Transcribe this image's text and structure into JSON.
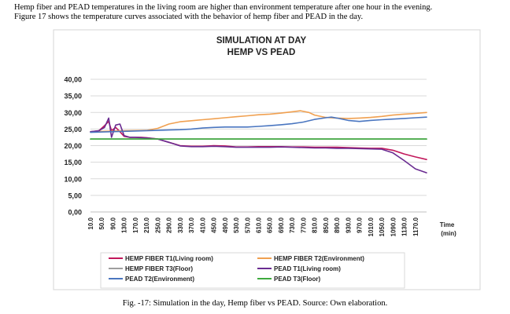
{
  "intro_text": [
    "Hemp fiber and PEAD temperatures in the living room are higher than environment temperature after one hour in the evening.",
    "Figure 17 shows the temperature curves associated with the behavior of hemp fiber and PEAD in the day."
  ],
  "caption": "Fig. -17: Simulation in the day, Hemp fiber vs PEAD. Source: Own elaboration.",
  "chart_data": {
    "type": "line",
    "title": "SIMULATION AT DAY",
    "subtitle": "HEMP VS PEAD",
    "xlabel": "Time (min)",
    "xlabel_lines": [
      "Time",
      "(min)"
    ],
    "ylabel": "",
    "ylim": [
      0,
      40
    ],
    "ytick_labels": [
      "0,00",
      "5,00",
      "10,00",
      "15,00",
      "20,00",
      "25,00",
      "30,00",
      "35,00",
      "40,00"
    ],
    "ytick_values": [
      0,
      5,
      10,
      15,
      20,
      25,
      30,
      35,
      40
    ],
    "xlim": [
      10,
      1210
    ],
    "xtick_values": [
      10,
      50,
      90,
      130,
      170,
      210,
      250,
      290,
      330,
      370,
      410,
      450,
      490,
      530,
      570,
      610,
      650,
      690,
      730,
      770,
      810,
      850,
      890,
      930,
      970,
      1010,
      1050,
      1090,
      1130,
      1170
    ],
    "xtick_labels": [
      "10.0",
      "50.0",
      "90.0",
      "130.0",
      "170.0",
      "210.0",
      "250.0",
      "290.0",
      "330.0",
      "370.0",
      "410.0",
      "450.0",
      "490.0",
      "530.0",
      "570.0",
      "610.0",
      "650.0",
      "690.0",
      "730.0",
      "770.0",
      "810.0",
      "850.0",
      "890.0",
      "930.0",
      "970.0",
      "1010.0",
      "1050.0",
      "1090.0",
      "1130.0",
      "1170.0"
    ],
    "grid": "horizontal",
    "legend_position": "bottom",
    "series": [
      {
        "name": "HEMP FIBER T1(Living room)",
        "color": "#c2185b",
        "points": [
          [
            10,
            24.2
          ],
          [
            40,
            24.5
          ],
          [
            60,
            26
          ],
          [
            75,
            27.3
          ],
          [
            85,
            24.5
          ],
          [
            100,
            25.5
          ],
          [
            115,
            24.2
          ],
          [
            130,
            22.8
          ],
          [
            150,
            22.5
          ],
          [
            170,
            22.5
          ],
          [
            190,
            22.5
          ],
          [
            210,
            22.4
          ],
          [
            250,
            22
          ],
          [
            290,
            21
          ],
          [
            330,
            20
          ],
          [
            370,
            19.8
          ],
          [
            410,
            19.8
          ],
          [
            450,
            20
          ],
          [
            490,
            19.9
          ],
          [
            530,
            19.6
          ],
          [
            570,
            19.6
          ],
          [
            610,
            19.7
          ],
          [
            650,
            19.7
          ],
          [
            690,
            19.7
          ],
          [
            730,
            19.6
          ],
          [
            770,
            19.6
          ],
          [
            810,
            19.5
          ],
          [
            850,
            19.5
          ],
          [
            890,
            19.5
          ],
          [
            930,
            19.4
          ],
          [
            970,
            19.3
          ],
          [
            1010,
            19.2
          ],
          [
            1050,
            19.2
          ],
          [
            1090,
            18.6
          ],
          [
            1130,
            17.5
          ],
          [
            1170,
            16.6
          ],
          [
            1210,
            15.8
          ]
        ]
      },
      {
        "name": "HEMP FIBER T2(Environment)",
        "color": "#f0a050",
        "points": [
          [
            10,
            24.2
          ],
          [
            130,
            24.5
          ],
          [
            210,
            24.6
          ],
          [
            250,
            25.2
          ],
          [
            290,
            26.5
          ],
          [
            330,
            27.2
          ],
          [
            370,
            27.5
          ],
          [
            410,
            27.8
          ],
          [
            450,
            28.1
          ],
          [
            490,
            28.4
          ],
          [
            530,
            28.7
          ],
          [
            570,
            29
          ],
          [
            610,
            29.3
          ],
          [
            650,
            29.5
          ],
          [
            690,
            29.8
          ],
          [
            730,
            30.2
          ],
          [
            760,
            30.5
          ],
          [
            790,
            30
          ],
          [
            810,
            29.2
          ],
          [
            850,
            28.5
          ],
          [
            890,
            28.3
          ],
          [
            930,
            28.2
          ],
          [
            970,
            28.3
          ],
          [
            1010,
            28.5
          ],
          [
            1050,
            28.8
          ],
          [
            1090,
            29.2
          ],
          [
            1130,
            29.5
          ],
          [
            1170,
            29.7
          ],
          [
            1210,
            30
          ]
        ]
      },
      {
        "name": "HEMP FIBER T3(Floor)",
        "color": "#9e9e9e",
        "points": [
          [
            10,
            22
          ],
          [
            1210,
            22
          ]
        ]
      },
      {
        "name": "PEAD T1(Living room)",
        "color": "#6a2c91",
        "points": [
          [
            10,
            24.2
          ],
          [
            40,
            24.5
          ],
          [
            60,
            25.5
          ],
          [
            75,
            28.3
          ],
          [
            85,
            22.5
          ],
          [
            100,
            26.2
          ],
          [
            115,
            26.5
          ],
          [
            130,
            23
          ],
          [
            150,
            22.5
          ],
          [
            170,
            22.5
          ],
          [
            190,
            22.4
          ],
          [
            210,
            22.3
          ],
          [
            250,
            22
          ],
          [
            290,
            21
          ],
          [
            330,
            19.9
          ],
          [
            370,
            19.7
          ],
          [
            410,
            19.7
          ],
          [
            450,
            19.8
          ],
          [
            490,
            19.7
          ],
          [
            530,
            19.5
          ],
          [
            570,
            19.5
          ],
          [
            610,
            19.5
          ],
          [
            650,
            19.5
          ],
          [
            690,
            19.6
          ],
          [
            730,
            19.5
          ],
          [
            770,
            19.4
          ],
          [
            810,
            19.3
          ],
          [
            850,
            19.3
          ],
          [
            890,
            19.2
          ],
          [
            930,
            19.2
          ],
          [
            970,
            19.1
          ],
          [
            1010,
            19
          ],
          [
            1050,
            18.9
          ],
          [
            1090,
            17.8
          ],
          [
            1130,
            15.5
          ],
          [
            1170,
            13
          ],
          [
            1210,
            11.8
          ]
        ]
      },
      {
        "name": "PEAD T2(Environment)",
        "color": "#4a76c0",
        "points": [
          [
            10,
            24
          ],
          [
            130,
            24.3
          ],
          [
            250,
            24.6
          ],
          [
            290,
            24.7
          ],
          [
            330,
            24.8
          ],
          [
            370,
            25
          ],
          [
            410,
            25.3
          ],
          [
            450,
            25.5
          ],
          [
            490,
            25.6
          ],
          [
            530,
            25.6
          ],
          [
            570,
            25.6
          ],
          [
            610,
            25.8
          ],
          [
            650,
            26
          ],
          [
            690,
            26.3
          ],
          [
            730,
            26.6
          ],
          [
            770,
            27.1
          ],
          [
            810,
            27.9
          ],
          [
            850,
            28.4
          ],
          [
            870,
            28.6
          ],
          [
            890,
            28.3
          ],
          [
            930,
            27.6
          ],
          [
            970,
            27.3
          ],
          [
            1010,
            27.6
          ],
          [
            1050,
            27.8
          ],
          [
            1090,
            28
          ],
          [
            1130,
            28.2
          ],
          [
            1170,
            28.4
          ],
          [
            1210,
            28.6
          ]
        ]
      },
      {
        "name": "PEAD T3(Floor)",
        "color": "#3daa3d",
        "points": [
          [
            10,
            22
          ],
          [
            1210,
            22
          ]
        ]
      }
    ]
  }
}
